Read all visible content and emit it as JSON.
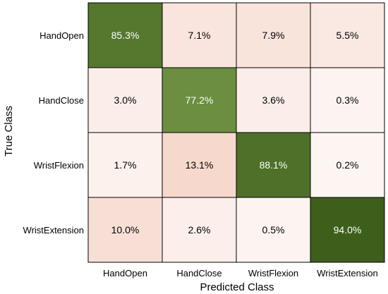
{
  "chart_data": {
    "type": "heatmap",
    "title": "",
    "xlabel": "Predicted Class",
    "ylabel": "True Class",
    "x_categories": [
      "HandOpen",
      "HandClose",
      "WristFlexion",
      "WristExtension"
    ],
    "y_categories": [
      "HandOpen",
      "HandClose",
      "WristFlexion",
      "WristExtension"
    ],
    "values": [
      [
        85.3,
        7.1,
        7.9,
        5.5
      ],
      [
        3.0,
        77.2,
        3.6,
        0.3
      ],
      [
        1.7,
        13.1,
        88.1,
        0.2
      ],
      [
        10.0,
        2.6,
        0.5,
        94.0
      ]
    ],
    "value_labels": [
      [
        "85.3%",
        "7.1%",
        "7.9%",
        "5.5%"
      ],
      [
        "3.0%",
        "77.2%",
        "3.6%",
        "0.3%"
      ],
      [
        "1.7%",
        "13.1%",
        "88.1%",
        "0.2%"
      ],
      [
        "10.0%",
        "2.6%",
        "0.5%",
        "94.0%"
      ]
    ],
    "colors": {
      "diagonal_dark": "#3e5f1b",
      "diagonal_light": "#6b8e40",
      "off_diagonal_low": "#fdf5f2",
      "off_diagonal_high": "#f6d8cd",
      "grid_line": "#000000"
    }
  }
}
